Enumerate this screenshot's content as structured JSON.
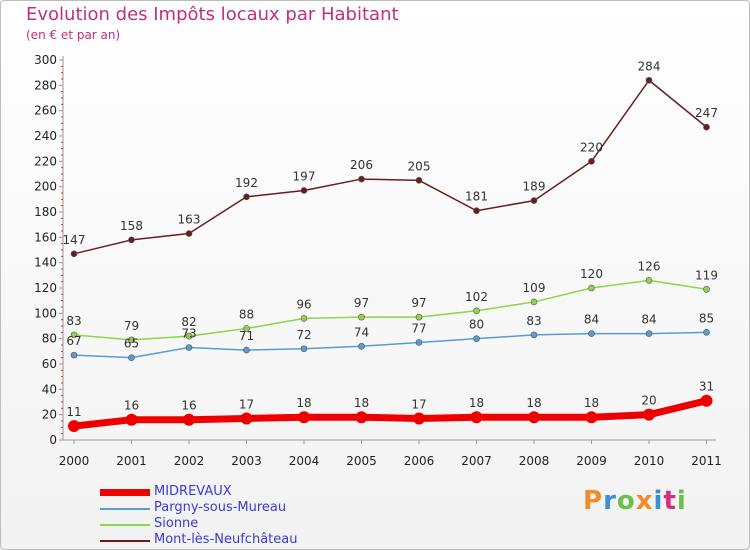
{
  "header": {
    "title": "Evolution des Impôts locaux par Habitant",
    "subtitle": "(en € et par an)"
  },
  "brand": {
    "text": "Proxiti",
    "colors": [
      "#f28c28",
      "#3a8fd6",
      "#6cc04a",
      "#f28c28",
      "#3a8fd6",
      "#d62f7e",
      "#6cc04a"
    ]
  },
  "chart_data": {
    "type": "line",
    "title": "Evolution des Impôts locaux par Habitant",
    "subtitle": "(en € et par an)",
    "x": [
      "2000",
      "2001",
      "2002",
      "2003",
      "2004",
      "2005",
      "2006",
      "2007",
      "2008",
      "2009",
      "2010",
      "2011"
    ],
    "ylim": [
      0,
      300
    ],
    "yticks": [
      0,
      20,
      40,
      60,
      80,
      100,
      120,
      140,
      160,
      180,
      200,
      220,
      240,
      260,
      280,
      300
    ],
    "grid": false,
    "legend_position": "bottom-left",
    "series": [
      {
        "name": "MIDREVAUX",
        "color": "#ee0000",
        "values": [
          11,
          16,
          16,
          17,
          18,
          18,
          17,
          18,
          18,
          18,
          20,
          31
        ],
        "labels": [
          "11",
          "16",
          "16",
          "17",
          "18",
          "18",
          "17",
          "18",
          "18",
          "18",
          "20",
          "31"
        ]
      },
      {
        "name": "Pargny-sous-Mureau",
        "color": "#5b9bd5",
        "values": [
          67,
          65,
          73,
          71,
          72,
          74,
          77,
          80,
          83,
          84,
          84,
          85
        ],
        "labels": [
          "67",
          "65",
          "73",
          "71",
          "72",
          "74",
          "77",
          "80",
          "83",
          "84",
          "84",
          "85"
        ]
      },
      {
        "name": "Sionne",
        "color": "#8fd44a",
        "values": [
          83,
          79,
          82,
          88,
          96,
          97,
          97,
          102,
          109,
          120,
          126,
          119
        ],
        "labels": [
          "83",
          "79",
          "82",
          "88",
          "96",
          "97",
          "97",
          "102",
          "109",
          "120",
          "126",
          "119"
        ]
      },
      {
        "name": "Mont-lès-Neufchâteau",
        "color": "#6b1d1d",
        "values": [
          147,
          158,
          163,
          192,
          197,
          206,
          205,
          181,
          189,
          220,
          284,
          247
        ],
        "labels": [
          "147",
          "158",
          "163",
          "192",
          "197",
          "206",
          "205",
          "181",
          "189",
          "220",
          "284",
          "247"
        ]
      }
    ]
  }
}
